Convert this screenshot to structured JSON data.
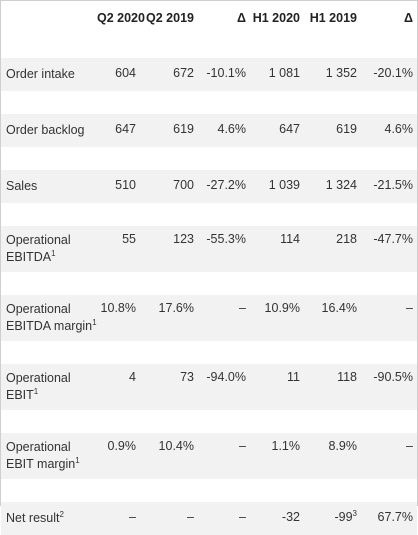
{
  "header": {
    "col1": "Q2 2020",
    "col2": "Q2 2019",
    "col3": "Δ",
    "col4": "H1 2020",
    "col5": "H1 2019",
    "col6": "Δ"
  },
  "rows": [
    {
      "label": "Order intake",
      "q2_2020": "604",
      "q2_2019": "672",
      "delta_q": "-10.1%",
      "h1_2020": "1 081",
      "h1_2019": "1 352",
      "delta_h": "-20.1%"
    },
    {
      "label": "Order backlog",
      "q2_2020": "647",
      "q2_2019": "619",
      "delta_q": "4.6%",
      "h1_2020": "647",
      "h1_2019": "619",
      "delta_h": "4.6%"
    },
    {
      "label": "Sales",
      "q2_2020": "510",
      "q2_2019": "700",
      "delta_q": "-27.2%",
      "h1_2020": "1 039",
      "h1_2019": "1 324",
      "delta_h": "-21.5%"
    },
    {
      "label_line1": "Operational",
      "label_line2": "EBITDA",
      "label_sup": "1",
      "q2_2020": "55",
      "q2_2019": "123",
      "delta_q": "-55.3%",
      "h1_2020": "114",
      "h1_2019": "218",
      "delta_h": "-47.7%"
    },
    {
      "label_line1": "Operational",
      "label_line2": "EBITDA margin",
      "label_sup": "1",
      "q2_2020": "10.8%",
      "q2_2019": "17.6%",
      "delta_q": "–",
      "h1_2020": "10.9%",
      "h1_2019": "16.4%",
      "delta_h": "–"
    },
    {
      "label_line1": "Operational",
      "label_line2": "EBIT",
      "label_sup": "1",
      "q2_2020": "4",
      "q2_2019": "73",
      "delta_q": "-94.0%",
      "h1_2020": "11",
      "h1_2019": "118",
      "delta_h": "-90.5%"
    },
    {
      "label_line1": "Operational",
      "label_line2": "EBIT margin",
      "label_sup": "1",
      "q2_2020": "0.9%",
      "q2_2019": "10.4%",
      "delta_q": "–",
      "h1_2020": "1.1%",
      "h1_2019": "8.9%",
      "delta_h": "–"
    },
    {
      "label": "Net result",
      "label_sup": "2",
      "q2_2020": "–",
      "q2_2019": "–",
      "delta_q": "–",
      "h1_2020": "-32",
      "h1_2019": "-99",
      "h1_2019_sup": "3",
      "delta_h": "67.7%"
    }
  ]
}
